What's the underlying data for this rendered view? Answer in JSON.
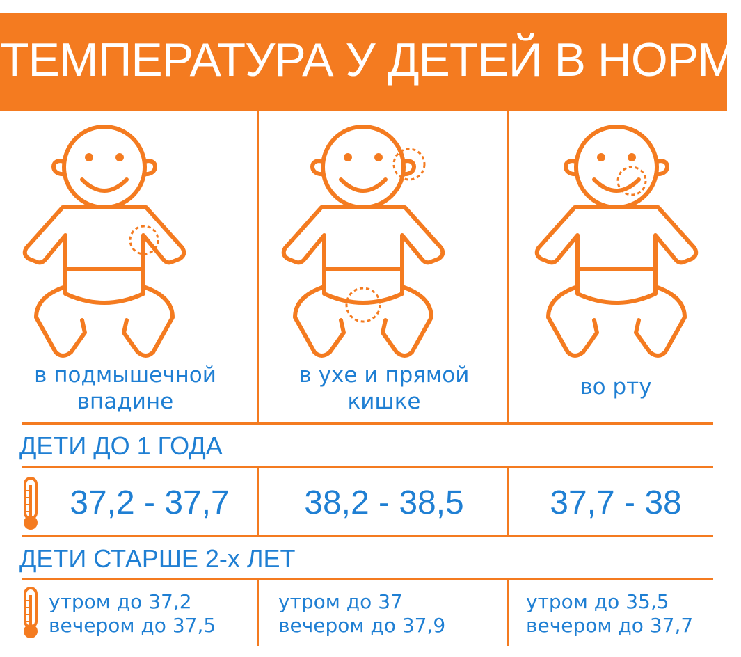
{
  "title": "ТЕМПЕРАТУРА У ДЕТЕЙ В НОРМЕ",
  "colors": {
    "accent": "#f47b20",
    "text": "#1f7fd3"
  },
  "methods": [
    {
      "line1": "в подмышечной",
      "line2": "впадине",
      "icon": "baby-armpit-icon"
    },
    {
      "line1": "в ухе и прямой",
      "line2": "кишке",
      "icon": "baby-ear-rectal-icon"
    },
    {
      "line1": "во рту",
      "line2": "",
      "icon": "baby-mouth-icon"
    }
  ],
  "infant": {
    "heading": "ДЕТИ ДО 1 ГОДА",
    "ranges": [
      "37,2 - 37,7",
      "38,2 - 38,5",
      "37,7 - 38"
    ]
  },
  "older": {
    "heading": "ДЕТИ СТАРШЕ 2-х ЛЕТ",
    "values": [
      {
        "morning": "утром до 37,2",
        "evening": "вечером до 37,5"
      },
      {
        "morning": "утром до 37",
        "evening": "вечером до 37,9"
      },
      {
        "morning": "утром до 35,5",
        "evening": "вечером до 37,7"
      }
    ]
  }
}
